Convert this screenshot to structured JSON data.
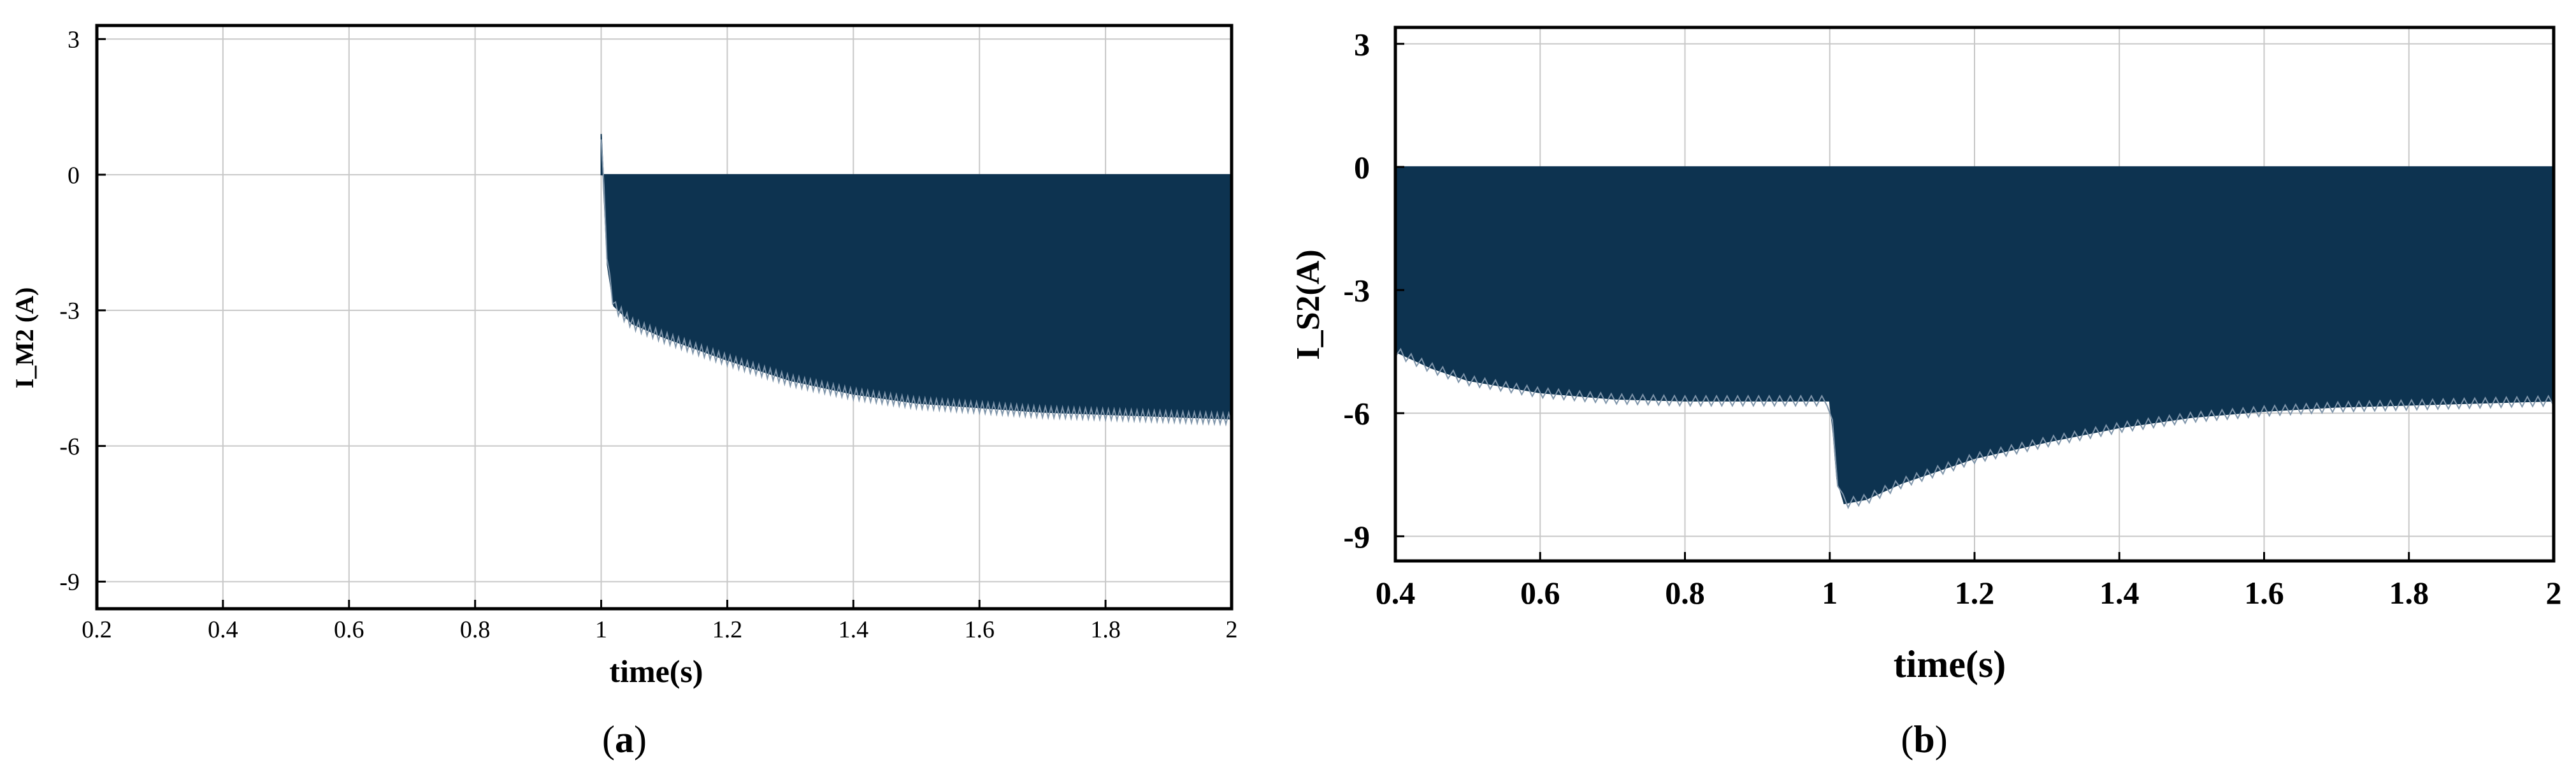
{
  "chart_data": [
    {
      "panel": "a",
      "type": "line",
      "caption": "(a)",
      "xlabel": "time(s)",
      "ylabel": "I_M2 (A)",
      "xlim": [
        0.2,
        2
      ],
      "ylim": [
        -9.6,
        3.3
      ],
      "xticks": [
        0.2,
        0.4,
        0.6,
        0.8,
        1,
        1.2,
        1.4,
        1.6,
        1.8,
        2
      ],
      "xtick_labels": [
        "0.2",
        "0.4",
        "0.6",
        "0.8",
        "1",
        "1.2",
        "1.4",
        "1.6",
        "1.8",
        "2"
      ],
      "yticks": [
        3,
        0,
        -3,
        -6,
        -9
      ],
      "ytick_labels": [
        "3",
        "0",
        "-3",
        "-6",
        "-9"
      ],
      "grid": true,
      "line_color": "#0d3350",
      "series": [
        {
          "upper": {
            "x": [
              1.0,
              2.0
            ],
            "y": [
              0,
              0
            ]
          },
          "lower": {
            "x": [
              1.0,
              1.01,
              1.02,
              1.05,
              1.1,
              1.2,
              1.3,
              1.4,
              1.5,
              1.6,
              1.7,
              1.8,
              1.9,
              2.0
            ],
            "y": [
              0.9,
              -2.0,
              -2.9,
              -3.3,
              -3.6,
              -4.1,
              -4.55,
              -4.85,
              -5.05,
              -5.15,
              -5.25,
              -5.3,
              -5.35,
              -5.4
            ]
          }
        }
      ]
    },
    {
      "panel": "b",
      "type": "line",
      "caption": "(b)",
      "xlabel": "time(s)",
      "ylabel": "I_S2(A)",
      "xlim": [
        0.4,
        2
      ],
      "ylim": [
        -9.6,
        3.4
      ],
      "xticks": [
        0.4,
        0.6,
        0.8,
        1,
        1.2,
        1.4,
        1.6,
        1.8,
        2
      ],
      "xtick_labels": [
        "0.4",
        "0.6",
        "0.8",
        "1",
        "1.2",
        "1.4",
        "1.6",
        "1.8",
        "2"
      ],
      "yticks": [
        3,
        0,
        -3,
        -6,
        -9
      ],
      "ytick_labels": [
        "3",
        "0",
        "-3",
        "-6",
        "-9"
      ],
      "grid": true,
      "line_color": "#0d3350",
      "series": [
        {
          "upper": {
            "x": [
              0.4,
              2.0
            ],
            "y": [
              0,
              0
            ]
          },
          "lower": {
            "x": [
              0.4,
              0.45,
              0.5,
              0.6,
              0.7,
              0.8,
              0.9,
              1.0,
              1.005,
              1.01,
              1.02,
              1.05,
              1.1,
              1.2,
              1.3,
              1.4,
              1.5,
              1.6,
              1.7,
              1.8,
              1.9,
              2.0
            ],
            "y": [
              -4.5,
              -4.9,
              -5.2,
              -5.5,
              -5.65,
              -5.7,
              -5.7,
              -5.7,
              -6.5,
              -7.6,
              -8.2,
              -8.1,
              -7.7,
              -7.1,
              -6.7,
              -6.35,
              -6.1,
              -5.95,
              -5.85,
              -5.8,
              -5.75,
              -5.7
            ]
          }
        }
      ]
    }
  ]
}
